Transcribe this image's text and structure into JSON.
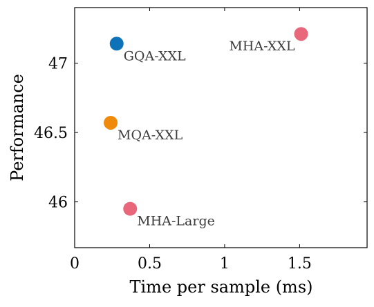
{
  "chart_data": {
    "type": "scatter",
    "xlabel": "Time per sample (ms)",
    "ylabel": "Performance",
    "xlim": [
      0,
      1.95
    ],
    "ylim": [
      45.67,
      47.4
    ],
    "x_ticks": [
      {
        "value": 0,
        "label": "0"
      },
      {
        "value": 0.5,
        "label": "0.5"
      },
      {
        "value": 1,
        "label": "1"
      },
      {
        "value": 1.5,
        "label": "1.5"
      }
    ],
    "y_ticks": [
      {
        "value": 46,
        "label": "46"
      },
      {
        "value": 46.5,
        "label": "46.5"
      },
      {
        "value": 47,
        "label": "47"
      }
    ],
    "grid": false,
    "points": [
      {
        "label": "GQA-XXL",
        "x": 0.28,
        "y": 47.14,
        "color": "#0e72b9",
        "label_side": "below-right"
      },
      {
        "label": "MHA-XXL",
        "x": 1.51,
        "y": 47.21,
        "color": "#e8677a",
        "label_side": "below-left"
      },
      {
        "label": "MQA-XXL",
        "x": 0.24,
        "y": 46.57,
        "color": "#f08a0a",
        "label_side": "below-right"
      },
      {
        "label": "MHA-Large",
        "x": 0.37,
        "y": 45.95,
        "color": "#e8677a",
        "label_side": "below-right"
      }
    ]
  }
}
